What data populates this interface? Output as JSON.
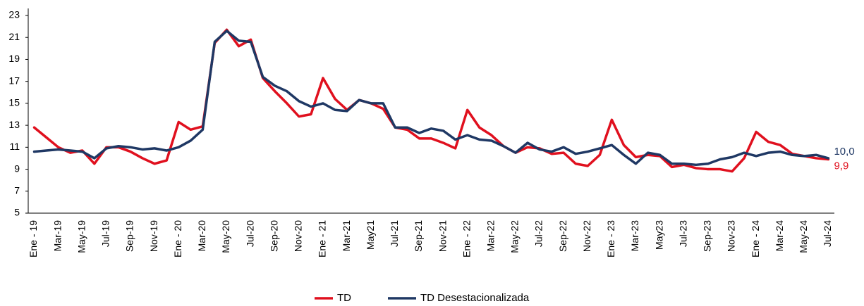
{
  "chart_data": {
    "type": "line",
    "categories": [
      "Ene - 19",
      null,
      "Mar-19",
      null,
      "May-19",
      null,
      "Jul-19",
      null,
      "Sep-19",
      null,
      "Nov-19",
      null,
      "Ene - 20",
      null,
      "Mar-20",
      null,
      "May-20",
      null,
      "Jul-20",
      null,
      "Sep-20",
      null,
      "Nov-20",
      null,
      "Ene - 21",
      null,
      "Mar-21",
      null,
      "May21",
      null,
      "Jul-21",
      null,
      "Sep-21",
      null,
      "Nov-21",
      null,
      "Ene - 22",
      null,
      "Mar-22",
      null,
      "May-22",
      null,
      "Jul-22",
      null,
      "Sep-22",
      null,
      "Nov-22",
      null,
      "Ene - 23",
      null,
      "Mar-23",
      null,
      "May23",
      null,
      "Jul-23",
      null,
      "Sep-23",
      null,
      "Nov-23",
      null,
      "Ene - 24",
      null,
      "Mar-24",
      null,
      "May-24",
      null,
      "Jul-24"
    ],
    "series": [
      {
        "name": "TD",
        "color": "#e0101e",
        "values": [
          12.8,
          11.9,
          11.0,
          10.5,
          10.7,
          9.5,
          11.0,
          11.0,
          10.6,
          10.0,
          9.5,
          9.8,
          13.3,
          12.6,
          12.9,
          20.5,
          21.7,
          20.2,
          20.8,
          17.3,
          16.1,
          15.0,
          13.8,
          14.0,
          17.3,
          15.4,
          14.4,
          15.3,
          15.0,
          14.5,
          12.8,
          12.6,
          11.8,
          11.8,
          11.4,
          10.9,
          14.4,
          12.8,
          12.1,
          11.1,
          10.5,
          11.0,
          10.9,
          10.4,
          10.5,
          9.5,
          9.3,
          10.3,
          13.5,
          11.2,
          10.1,
          10.3,
          10.2,
          9.2,
          9.4,
          9.1,
          9.0,
          9.0,
          8.8,
          10.0,
          12.4,
          11.5,
          11.2,
          10.4,
          10.2,
          10.0,
          9.9
        ],
        "value_labels": [
          null,
          null,
          null,
          null,
          null,
          null,
          null,
          null,
          null,
          null,
          null,
          null,
          null,
          null,
          null,
          null,
          null,
          null,
          null,
          null,
          null,
          null,
          null,
          null,
          null,
          null,
          null,
          null,
          null,
          null,
          null,
          null,
          null,
          null,
          null,
          null,
          null,
          null,
          null,
          null,
          null,
          null,
          null,
          null,
          null,
          null,
          null,
          null,
          null,
          null,
          null,
          null,
          null,
          null,
          null,
          null,
          null,
          null,
          null,
          null,
          null,
          null,
          null,
          null,
          null,
          null,
          "9,9"
        ]
      },
      {
        "name": "TD Desestacionalizada",
        "color": "#1f3864",
        "values": [
          10.6,
          10.7,
          10.8,
          10.7,
          10.6,
          10.0,
          10.9,
          11.1,
          11.0,
          10.8,
          10.9,
          10.7,
          11.0,
          11.6,
          12.6,
          20.6,
          21.6,
          20.7,
          20.6,
          17.4,
          16.6,
          16.1,
          15.2,
          14.7,
          15.0,
          14.4,
          14.3,
          15.3,
          15.0,
          15.0,
          12.8,
          12.8,
          12.3,
          12.7,
          12.5,
          11.7,
          12.1,
          11.7,
          11.6,
          11.1,
          10.5,
          11.4,
          10.8,
          10.6,
          11.0,
          10.4,
          10.6,
          10.9,
          11.2,
          10.3,
          9.5,
          10.5,
          10.3,
          9.5,
          9.5,
          9.4,
          9.5,
          9.9,
          10.1,
          10.5,
          10.2,
          10.5,
          10.6,
          10.3,
          10.2,
          10.3,
          10.0
        ],
        "value_labels": [
          null,
          null,
          null,
          null,
          null,
          null,
          null,
          null,
          null,
          null,
          null,
          null,
          null,
          null,
          null,
          null,
          null,
          null,
          null,
          null,
          null,
          null,
          null,
          null,
          null,
          null,
          null,
          null,
          null,
          null,
          null,
          null,
          null,
          null,
          null,
          null,
          null,
          null,
          null,
          null,
          null,
          null,
          null,
          null,
          null,
          null,
          null,
          null,
          null,
          null,
          null,
          null,
          null,
          null,
          null,
          null,
          null,
          null,
          null,
          null,
          null,
          null,
          null,
          null,
          null,
          null,
          "10,0"
        ]
      }
    ],
    "ylim": [
      5,
      23
    ],
    "yticks": [
      5,
      7,
      9,
      11,
      13,
      15,
      17,
      19,
      21,
      23
    ],
    "grid": false,
    "legend": "bottom"
  }
}
